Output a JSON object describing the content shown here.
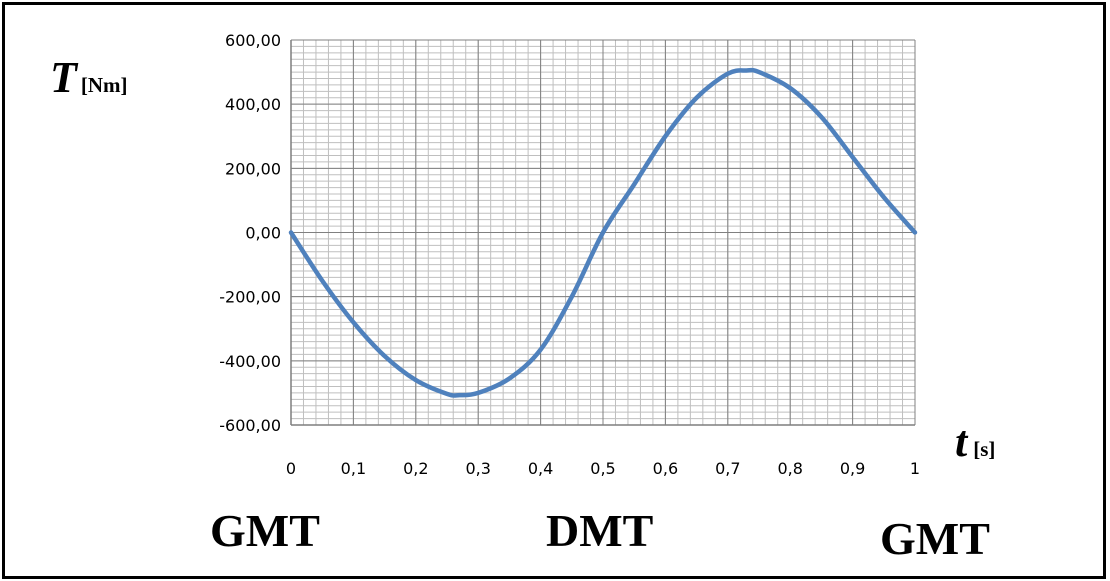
{
  "chart_data": {
    "type": "line",
    "title": "",
    "ylabel_symbol": "T",
    "ylabel_unit": "[Nm]",
    "xlabel_symbol": "t",
    "xlabel_unit": "[s]",
    "xlim": [
      0,
      1
    ],
    "ylim": [
      -600,
      600
    ],
    "x_ticks": [
      0,
      0.1,
      0.2,
      0.3,
      0.4,
      0.5,
      0.6,
      0.7,
      0.8,
      0.9,
      1
    ],
    "x_tick_labels": [
      "0",
      "0,1",
      "0,2",
      "0,3",
      "0,4",
      "0,5",
      "0,6",
      "0,7",
      "0,8",
      "0,9",
      "1"
    ],
    "y_ticks": [
      600,
      400,
      200,
      0,
      -200,
      -400,
      -600
    ],
    "y_tick_labels": [
      "600,00",
      "400,00",
      "200,00",
      "0,00",
      "-200,00",
      "-400,00",
      "-600,00"
    ],
    "grid": true,
    "series": [
      {
        "color": "#4f81bd",
        "x": [
          0,
          0.05,
          0.1,
          0.15,
          0.2,
          0.25,
          0.27,
          0.3,
          0.35,
          0.4,
          0.45,
          0.5,
          0.55,
          0.6,
          0.65,
          0.7,
          0.73,
          0.75,
          0.8,
          0.85,
          0.9,
          0.95,
          1
        ],
        "values": [
          0,
          -150,
          -280,
          -385,
          -460,
          -503,
          -507,
          -500,
          -455,
          -365,
          -200,
          0,
          150,
          300,
          420,
          495,
          505,
          500,
          450,
          360,
          235,
          110,
          0
        ]
      }
    ],
    "annotations": [
      "GMT",
      "DMT",
      "GMT"
    ]
  }
}
